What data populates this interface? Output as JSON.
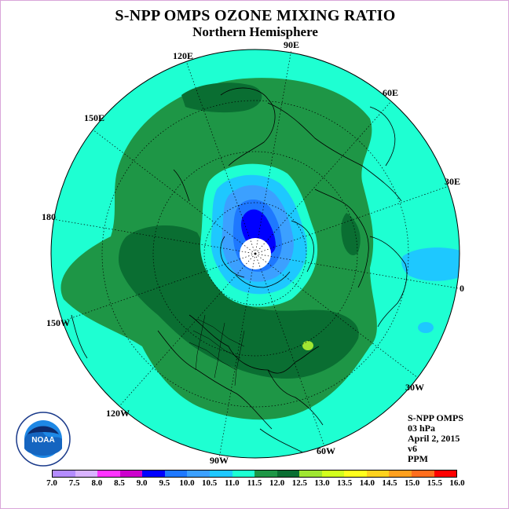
{
  "title": "S-NPP OMPS OZONE MIXING RATIO",
  "subtitle": "Northern Hemisphere",
  "longitude_labels": [
    "90E",
    "60E",
    "30E",
    "0",
    "30W",
    "60W",
    "90W",
    "120W",
    "150W",
    "180",
    "150E",
    "120E"
  ],
  "info": {
    "instrument": "S-NPP OMPS",
    "level": "03 hPa",
    "date": "April 2, 2015",
    "version": "v6",
    "units": "PPM"
  },
  "logo": {
    "text": "NOAA",
    "ring_text": "NATIONAL OCEANIC AND ATMOSPHERIC ADMINISTRATION · U.S. DEPARTMENT OF COMMERCE"
  },
  "colorbar": {
    "ticks": [
      "7.0",
      "7.5",
      "8.0",
      "8.5",
      "9.0",
      "9.5",
      "10.0",
      "10.5",
      "11.0",
      "11.5",
      "12.0",
      "12.5",
      "13.0",
      "13.5",
      "14.0",
      "14.5",
      "15.0",
      "15.5",
      "16.0"
    ],
    "colors": [
      "#b48cff",
      "#d9b3ff",
      "#ff33ff",
      "#cc00cc",
      "#0000ff",
      "#1e78ff",
      "#3ca0ff",
      "#1ec8ff",
      "#1effd2",
      "#1e9646",
      "#0a6e32",
      "#a0e632",
      "#d2ff1e",
      "#ffff1e",
      "#ffd21e",
      "#ffa01e",
      "#ff6e1e",
      "#ff0000",
      "#8b4513"
    ]
  },
  "colors": {
    "field_11_0": "#1effd2",
    "field_11_5": "#1e9646",
    "field_12_0": "#0a6e32",
    "field_10_5": "#1ec8ff",
    "field_10_0": "#3ca0ff",
    "field_9_5": "#1e78ff",
    "field_9_0": "#0000ff",
    "field_12_5": "#a0e632"
  }
}
